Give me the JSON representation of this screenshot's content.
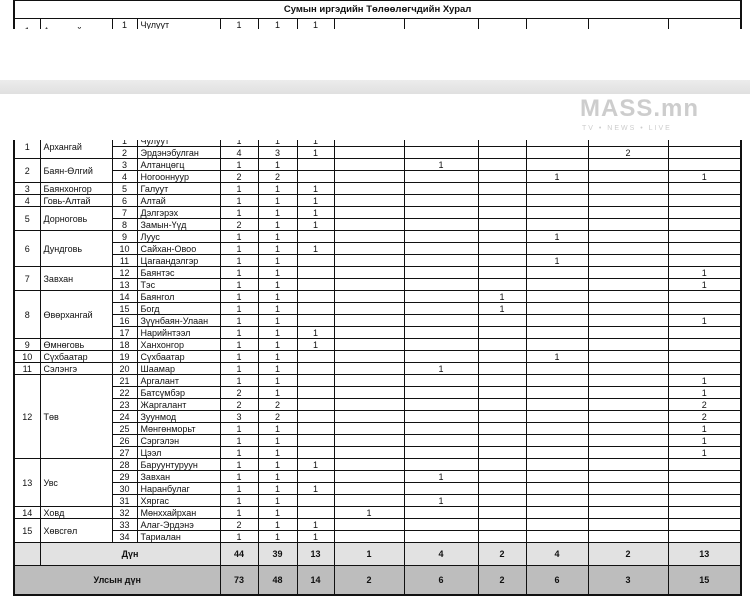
{
  "title": "Сумын иргэдийн Төлөөлөгчдийн Хурал",
  "aimags": [
    {
      "no": "1",
      "name": "Архангай",
      "sums": [
        {
          "no": "1",
          "name": "Чулуут",
          "values": [
            "1",
            "1",
            "1",
            "",
            "",
            "",
            "",
            "",
            ""
          ]
        },
        {
          "no": "2",
          "name": "Эрдэнэбулган",
          "values": [
            "4",
            "3",
            "1",
            "",
            "",
            "",
            "",
            "2",
            ""
          ]
        }
      ]
    },
    {
      "no": "2",
      "name": "Баян-Өлгий",
      "sums": [
        {
          "no": "3",
          "name": "Алтанцөгц",
          "values": [
            "1",
            "1",
            "",
            "",
            "1",
            "",
            "",
            "",
            ""
          ]
        },
        {
          "no": "4",
          "name": "Ногооннуур",
          "values": [
            "2",
            "2",
            "",
            "",
            "",
            "",
            "1",
            "",
            "1"
          ]
        }
      ]
    },
    {
      "no": "3",
      "name": "Баянхонгор",
      "sums": [
        {
          "no": "5",
          "name": "Галуут",
          "values": [
            "1",
            "1",
            "1",
            "",
            "",
            "",
            "",
            "",
            ""
          ]
        }
      ]
    },
    {
      "no": "4",
      "name": "Говь-Алтай",
      "sums": [
        {
          "no": "6",
          "name": "Алтай",
          "values": [
            "1",
            "1",
            "1",
            "",
            "",
            "",
            "",
            "",
            ""
          ]
        }
      ]
    },
    {
      "no": "5",
      "name": "Дорноговь",
      "sums": [
        {
          "no": "7",
          "name": "Дэлгэрэх",
          "values": [
            "1",
            "1",
            "1",
            "",
            "",
            "",
            "",
            "",
            ""
          ]
        },
        {
          "no": "8",
          "name": "Замын-Үүд",
          "values": [
            "2",
            "1",
            "1",
            "",
            "",
            "",
            "",
            "",
            ""
          ]
        }
      ]
    },
    {
      "no": "6",
      "name": "Дундговь",
      "sums": [
        {
          "no": "9",
          "name": "Луус",
          "values": [
            "1",
            "1",
            "",
            "",
            "",
            "",
            "1",
            "",
            ""
          ]
        },
        {
          "no": "10",
          "name": "Сайхан-Овоо",
          "values": [
            "1",
            "1",
            "1",
            "",
            "",
            "",
            "",
            "",
            ""
          ]
        },
        {
          "no": "11",
          "name": "Цагаандэлгэр",
          "values": [
            "1",
            "1",
            "",
            "",
            "",
            "",
            "1",
            "",
            ""
          ]
        }
      ]
    },
    {
      "no": "7",
      "name": "Завхан",
      "sums": [
        {
          "no": "12",
          "name": "Баянтэс",
          "values": [
            "1",
            "1",
            "",
            "",
            "",
            "",
            "",
            "",
            "1"
          ]
        },
        {
          "no": "13",
          "name": "Тэс",
          "values": [
            "1",
            "1",
            "",
            "",
            "",
            "",
            "",
            "",
            "1"
          ]
        }
      ]
    },
    {
      "no": "8",
      "name": "Өвөрхангай",
      "sums": [
        {
          "no": "14",
          "name": "Баянгол",
          "values": [
            "1",
            "1",
            "",
            "",
            "",
            "1",
            "",
            "",
            ""
          ]
        },
        {
          "no": "15",
          "name": "Богд",
          "values": [
            "1",
            "1",
            "",
            "",
            "",
            "1",
            "",
            "",
            ""
          ]
        },
        {
          "no": "16",
          "name": "Зүүнбаян-Улаан",
          "values": [
            "1",
            "1",
            "",
            "",
            "",
            "",
            "",
            "",
            "1"
          ]
        },
        {
          "no": "17",
          "name": "Нарийнтээл",
          "values": [
            "1",
            "1",
            "1",
            "",
            "",
            "",
            "",
            "",
            ""
          ]
        }
      ]
    },
    {
      "no": "9",
      "name": "Өмнөговь",
      "sums": [
        {
          "no": "18",
          "name": "Ханхонгор",
          "values": [
            "1",
            "1",
            "1",
            "",
            "",
            "",
            "",
            "",
            ""
          ]
        }
      ]
    },
    {
      "no": "10",
      "name": "Сүхбаатар",
      "sums": [
        {
          "no": "19",
          "name": "Сүхбаатар",
          "values": [
            "1",
            "1",
            "",
            "",
            "",
            "",
            "1",
            "",
            ""
          ]
        }
      ]
    },
    {
      "no": "11",
      "name": "Сэлэнгэ",
      "sums": [
        {
          "no": "20",
          "name": "Шаамар",
          "values": [
            "1",
            "1",
            "",
            "",
            "1",
            "",
            "",
            "",
            ""
          ]
        }
      ]
    },
    {
      "no": "12",
      "name": "Төв",
      "sums": [
        {
          "no": "21",
          "name": "Аргалант",
          "values": [
            "1",
            "1",
            "",
            "",
            "",
            "",
            "",
            "",
            "1"
          ]
        },
        {
          "no": "22",
          "name": "Батсүмбэр",
          "values": [
            "2",
            "1",
            "",
            "",
            "",
            "",
            "",
            "",
            "1"
          ]
        },
        {
          "no": "23",
          "name": "Жаргалант",
          "values": [
            "2",
            "2",
            "",
            "",
            "",
            "",
            "",
            "",
            "2"
          ]
        },
        {
          "no": "24",
          "name": "Зуунмод",
          "values": [
            "3",
            "2",
            "",
            "",
            "",
            "",
            "",
            "",
            "2"
          ]
        },
        {
          "no": "25",
          "name": "Мөнгөнморьт",
          "values": [
            "1",
            "1",
            "",
            "",
            "",
            "",
            "",
            "",
            "1"
          ]
        },
        {
          "no": "26",
          "name": "Сэргэлэн",
          "values": [
            "1",
            "1",
            "",
            "",
            "",
            "",
            "",
            "",
            "1"
          ]
        },
        {
          "no": "27",
          "name": "Цээл",
          "values": [
            "1",
            "1",
            "",
            "",
            "",
            "",
            "",
            "",
            "1"
          ]
        }
      ]
    },
    {
      "no": "13",
      "name": "Увс",
      "sums": [
        {
          "no": "28",
          "name": "Баруунтуруун",
          "values": [
            "1",
            "1",
            "1",
            "",
            "",
            "",
            "",
            "",
            ""
          ]
        },
        {
          "no": "29",
          "name": "Завхан",
          "values": [
            "1",
            "1",
            "",
            "",
            "1",
            "",
            "",
            "",
            ""
          ]
        },
        {
          "no": "30",
          "name": "Наранбулаг",
          "values": [
            "1",
            "1",
            "1",
            "",
            "",
            "",
            "",
            "",
            ""
          ]
        },
        {
          "no": "31",
          "name": "Хяргас",
          "values": [
            "1",
            "1",
            "",
            "",
            "1",
            "",
            "",
            "",
            ""
          ]
        }
      ]
    },
    {
      "no": "14",
      "name": "Ховд",
      "sums": [
        {
          "no": "32",
          "name": "Мөнххайрхан",
          "values": [
            "1",
            "1",
            "",
            "1",
            "",
            "",
            "",
            "",
            ""
          ]
        }
      ]
    },
    {
      "no": "15",
      "name": "Хөвсгөл",
      "sums": [
        {
          "no": "33",
          "name": "Алаг-Эрдэнэ",
          "values": [
            "2",
            "1",
            "1",
            "",
            "",
            "",
            "",
            "",
            ""
          ]
        },
        {
          "no": "34",
          "name": "Тариалан",
          "values": [
            "1",
            "1",
            "1",
            "",
            "",
            "",
            "",
            "",
            ""
          ]
        }
      ]
    }
  ],
  "total": {
    "label": "Дүн",
    "values": [
      "44",
      "39",
      "13",
      "1",
      "4",
      "2",
      "4",
      "2",
      "13"
    ]
  },
  "national_total": {
    "label": "Улсын дүн",
    "values": [
      "73",
      "48",
      "14",
      "2",
      "6",
      "2",
      "6",
      "3",
      "15"
    ]
  },
  "watermark": {
    "logo": "MASS.mn",
    "tagline": "TV • NEWS • LIVE"
  }
}
